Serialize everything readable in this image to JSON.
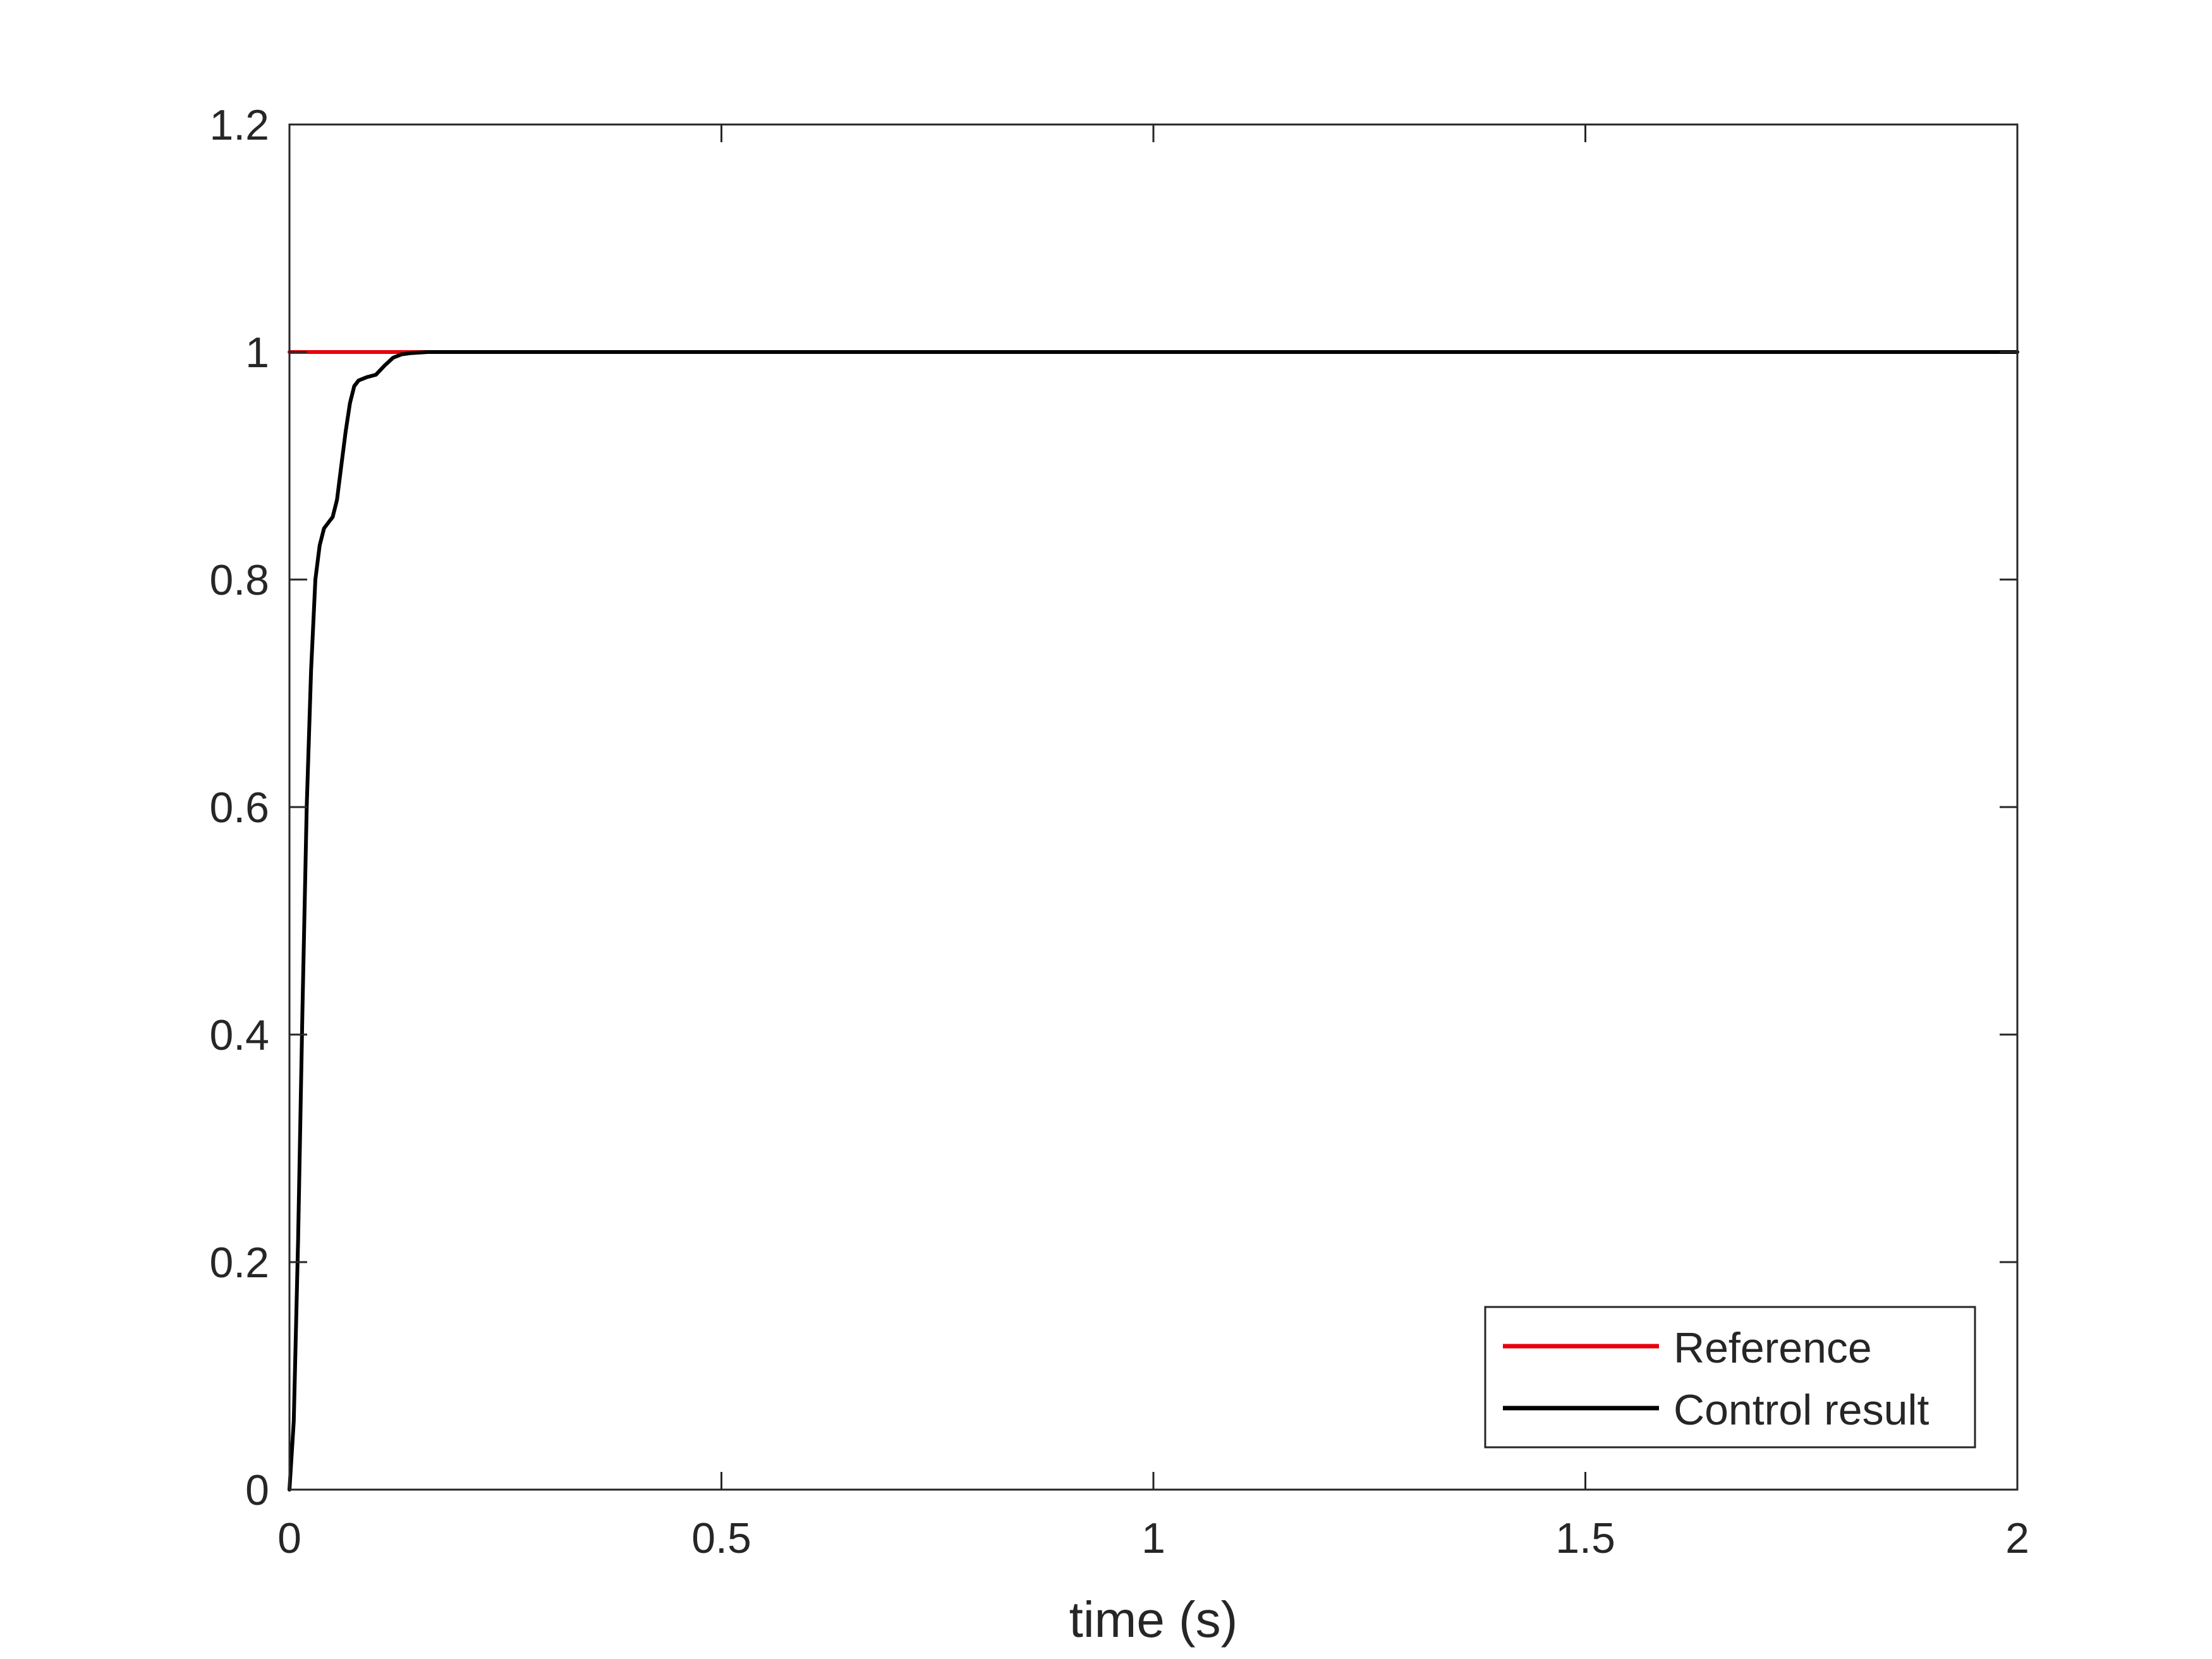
{
  "chart_data": {
    "type": "line",
    "title": "",
    "xlabel": "time (s)",
    "ylabel": "",
    "xlim": [
      0,
      2
    ],
    "ylim": [
      0,
      1.2
    ],
    "xticks": [
      0,
      0.5,
      1,
      1.5,
      2
    ],
    "xtick_labels": [
      "0",
      "0.5",
      "1",
      "1.5",
      "2"
    ],
    "yticks": [
      0,
      0.2,
      0.4,
      0.6,
      0.8,
      1.0,
      1.2
    ],
    "ytick_labels": [
      "0",
      "0.2",
      "0.4",
      "0.6",
      "0.8",
      "1",
      "1.2"
    ],
    "grid": false,
    "legend_position": "bottom-right",
    "series": [
      {
        "name": "Reference",
        "color": "#e8000b",
        "x": [
          0,
          2
        ],
        "y": [
          1,
          1
        ]
      },
      {
        "name": "Control result",
        "color": "#000000",
        "x": [
          0,
          0.005,
          0.01,
          0.015,
          0.02,
          0.025,
          0.03,
          0.035,
          0.04,
          0.045,
          0.05,
          0.055,
          0.06,
          0.065,
          0.07,
          0.075,
          0.08,
          0.09,
          0.1,
          0.11,
          0.12,
          0.13,
          0.14,
          0.15,
          0.16,
          0.17,
          0.18,
          0.19,
          0.2,
          0.22,
          0.25,
          0.3,
          0.35,
          0.4,
          2
        ],
        "y": [
          0,
          0.06,
          0.22,
          0.42,
          0.6,
          0.72,
          0.8,
          0.83,
          0.845,
          0.85,
          0.855,
          0.87,
          0.9,
          0.93,
          0.955,
          0.97,
          0.975,
          0.978,
          0.98,
          0.988,
          0.995,
          0.998,
          0.999,
          0.9995,
          1.0,
          1.0,
          1.0,
          1.0,
          1.0,
          1.0,
          1.0,
          1.0,
          1.0,
          1.0,
          1.0
        ]
      }
    ]
  }
}
